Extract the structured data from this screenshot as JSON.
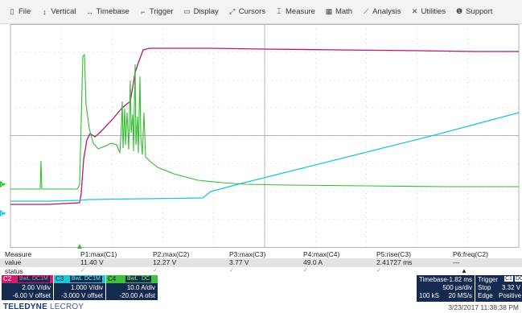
{
  "menu": [
    {
      "icon": "file-icon",
      "glyph": "▯",
      "label": "File"
    },
    {
      "icon": "vertical-icon",
      "glyph": "↕",
      "label": "Vertical"
    },
    {
      "icon": "timebase-icon",
      "glyph": "↔",
      "label": "Timebase"
    },
    {
      "icon": "trigger-icon",
      "glyph": "⌐",
      "label": "Trigger"
    },
    {
      "icon": "display-icon",
      "glyph": "▭",
      "label": "Display"
    },
    {
      "icon": "cursors-icon",
      "glyph": "⤢",
      "label": "Cursors"
    },
    {
      "icon": "measure-icon",
      "glyph": "⌶",
      "label": "Measure"
    },
    {
      "icon": "math-icon",
      "glyph": "▦",
      "label": "Math"
    },
    {
      "icon": "analysis-icon",
      "glyph": "⟋",
      "label": "Analysis"
    },
    {
      "icon": "utilities-icon",
      "glyph": "✕",
      "label": "Utilities"
    },
    {
      "icon": "support-icon",
      "glyph": "❶",
      "label": "Support"
    }
  ],
  "markers": {
    "c4": "C4",
    "c3": "C3"
  },
  "measure": {
    "row_label": "Measure",
    "value_label": "value",
    "status_label": "status",
    "params": [
      {
        "name": "P1:max(C1)",
        "value": "11.40 V"
      },
      {
        "name": "P2:max(C2)",
        "value": "12.27 V"
      },
      {
        "name": "P3:max(C3)",
        "value": "3.77 V"
      },
      {
        "name": "P4:max(C4)",
        "value": "49.0 A"
      },
      {
        "name": "P5:rise(C3)",
        "value": "2.41727 ms"
      },
      {
        "name": "P6:freq(C2)",
        "value": "---"
      }
    ]
  },
  "channels": [
    {
      "id": "C2",
      "color": "#cc1f6e",
      "tag1": "BwL",
      "tag2": "DC1M",
      "vdiv": "2.00 V/div",
      "offset": "-6.00 V offset"
    },
    {
      "id": "C3",
      "color": "#22c4d8",
      "tag1": "BwL",
      "tag2": "DC1M",
      "vdiv": "1.000 V/div",
      "offset": "-3.000 V offset"
    },
    {
      "id": "C4",
      "color": "#3fbf3f",
      "tag1": "BwL",
      "tag2": "DC",
      "vdiv": "10.0 A/div",
      "offset": "-20.00 A ofst"
    }
  ],
  "timebase": {
    "label": "Timebase",
    "delay": "-1.82 ms",
    "tdiv": "500 µs/div",
    "samples": "100 kS",
    "rate": "20 MS/s"
  },
  "trigger": {
    "label": "Trigger",
    "source": "C1",
    "coupling": "DC",
    "mode": "Stop",
    "level": "3.32 V",
    "type": "Edge",
    "slope": "Positive"
  },
  "footer": {
    "brand_bold": "TELEDYNE",
    "brand_light": "LECROY",
    "datetime": "3/23/2017 11:38:38 PM"
  },
  "colors": {
    "c2": "#b8186a",
    "c3": "#22c4d8",
    "c4": "#2fbf2f",
    "grid": "#b5b5b5"
  }
}
